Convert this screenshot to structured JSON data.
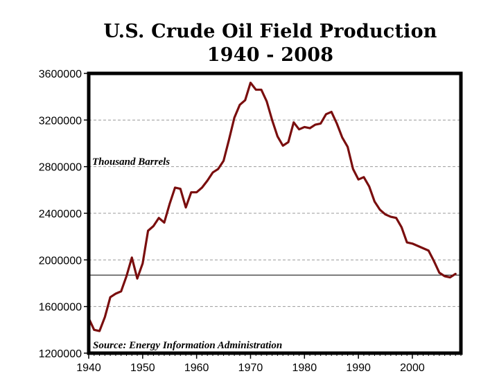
{
  "chart_data": {
    "type": "line",
    "title": "U.S. Crude Oil Field Production",
    "subtitle": "1940 - 2008",
    "annotation_units": "Thousand Barrels",
    "annotation_source": "Source: Energy Information Administration",
    "xlabel": "",
    "ylabel": "",
    "xlim": [
      1940,
      2009
    ],
    "ylim": [
      1200000,
      3600000
    ],
    "x_ticks": [
      1940,
      1950,
      1960,
      1970,
      1980,
      1990,
      2000
    ],
    "y_ticks": [
      1200000,
      1600000,
      2000000,
      2400000,
      2800000,
      3200000,
      3600000
    ],
    "reference_line": 1870000,
    "grid": "horizontal dashed",
    "line_color": "#7a0e0e",
    "series": [
      {
        "x": [
          1940,
          1941,
          1942,
          1943,
          1944,
          1945,
          1946,
          1947,
          1948,
          1949,
          1950,
          1951,
          1952,
          1953,
          1954,
          1955,
          1956,
          1957,
          1958,
          1959,
          1960,
          1961,
          1962,
          1963,
          1964,
          1965,
          1966,
          1967,
          1968,
          1969,
          1970,
          1971,
          1972,
          1973,
          1974,
          1975,
          1976,
          1977,
          1978,
          1979,
          1980,
          1981,
          1982,
          1983,
          1984,
          1985,
          1986,
          1987,
          1988,
          1989,
          1990,
          1991,
          1992,
          1993,
          1994,
          1995,
          1996,
          1997,
          1998,
          1999,
          2000,
          2001,
          2002,
          2003,
          2004,
          2005,
          2006,
          2007,
          2008
        ],
        "values": [
          1500000,
          1400000,
          1390000,
          1510000,
          1680000,
          1710000,
          1730000,
          1860000,
          2020000,
          1840000,
          1970000,
          2250000,
          2290000,
          2360000,
          2320000,
          2480000,
          2620000,
          2610000,
          2450000,
          2580000,
          2580000,
          2620000,
          2680000,
          2750000,
          2780000,
          2850000,
          3030000,
          3220000,
          3330000,
          3370000,
          3520000,
          3460000,
          3460000,
          3360000,
          3200000,
          3060000,
          2980000,
          3010000,
          3180000,
          3120000,
          3140000,
          3130000,
          3160000,
          3170000,
          3250000,
          3270000,
          3170000,
          3050000,
          2970000,
          2780000,
          2690000,
          2710000,
          2630000,
          2500000,
          2430000,
          2390000,
          2370000,
          2360000,
          2280000,
          2150000,
          2140000,
          2120000,
          2100000,
          2080000,
          1990000,
          1890000,
          1860000,
          1850000,
          1880000
        ]
      }
    ]
  }
}
